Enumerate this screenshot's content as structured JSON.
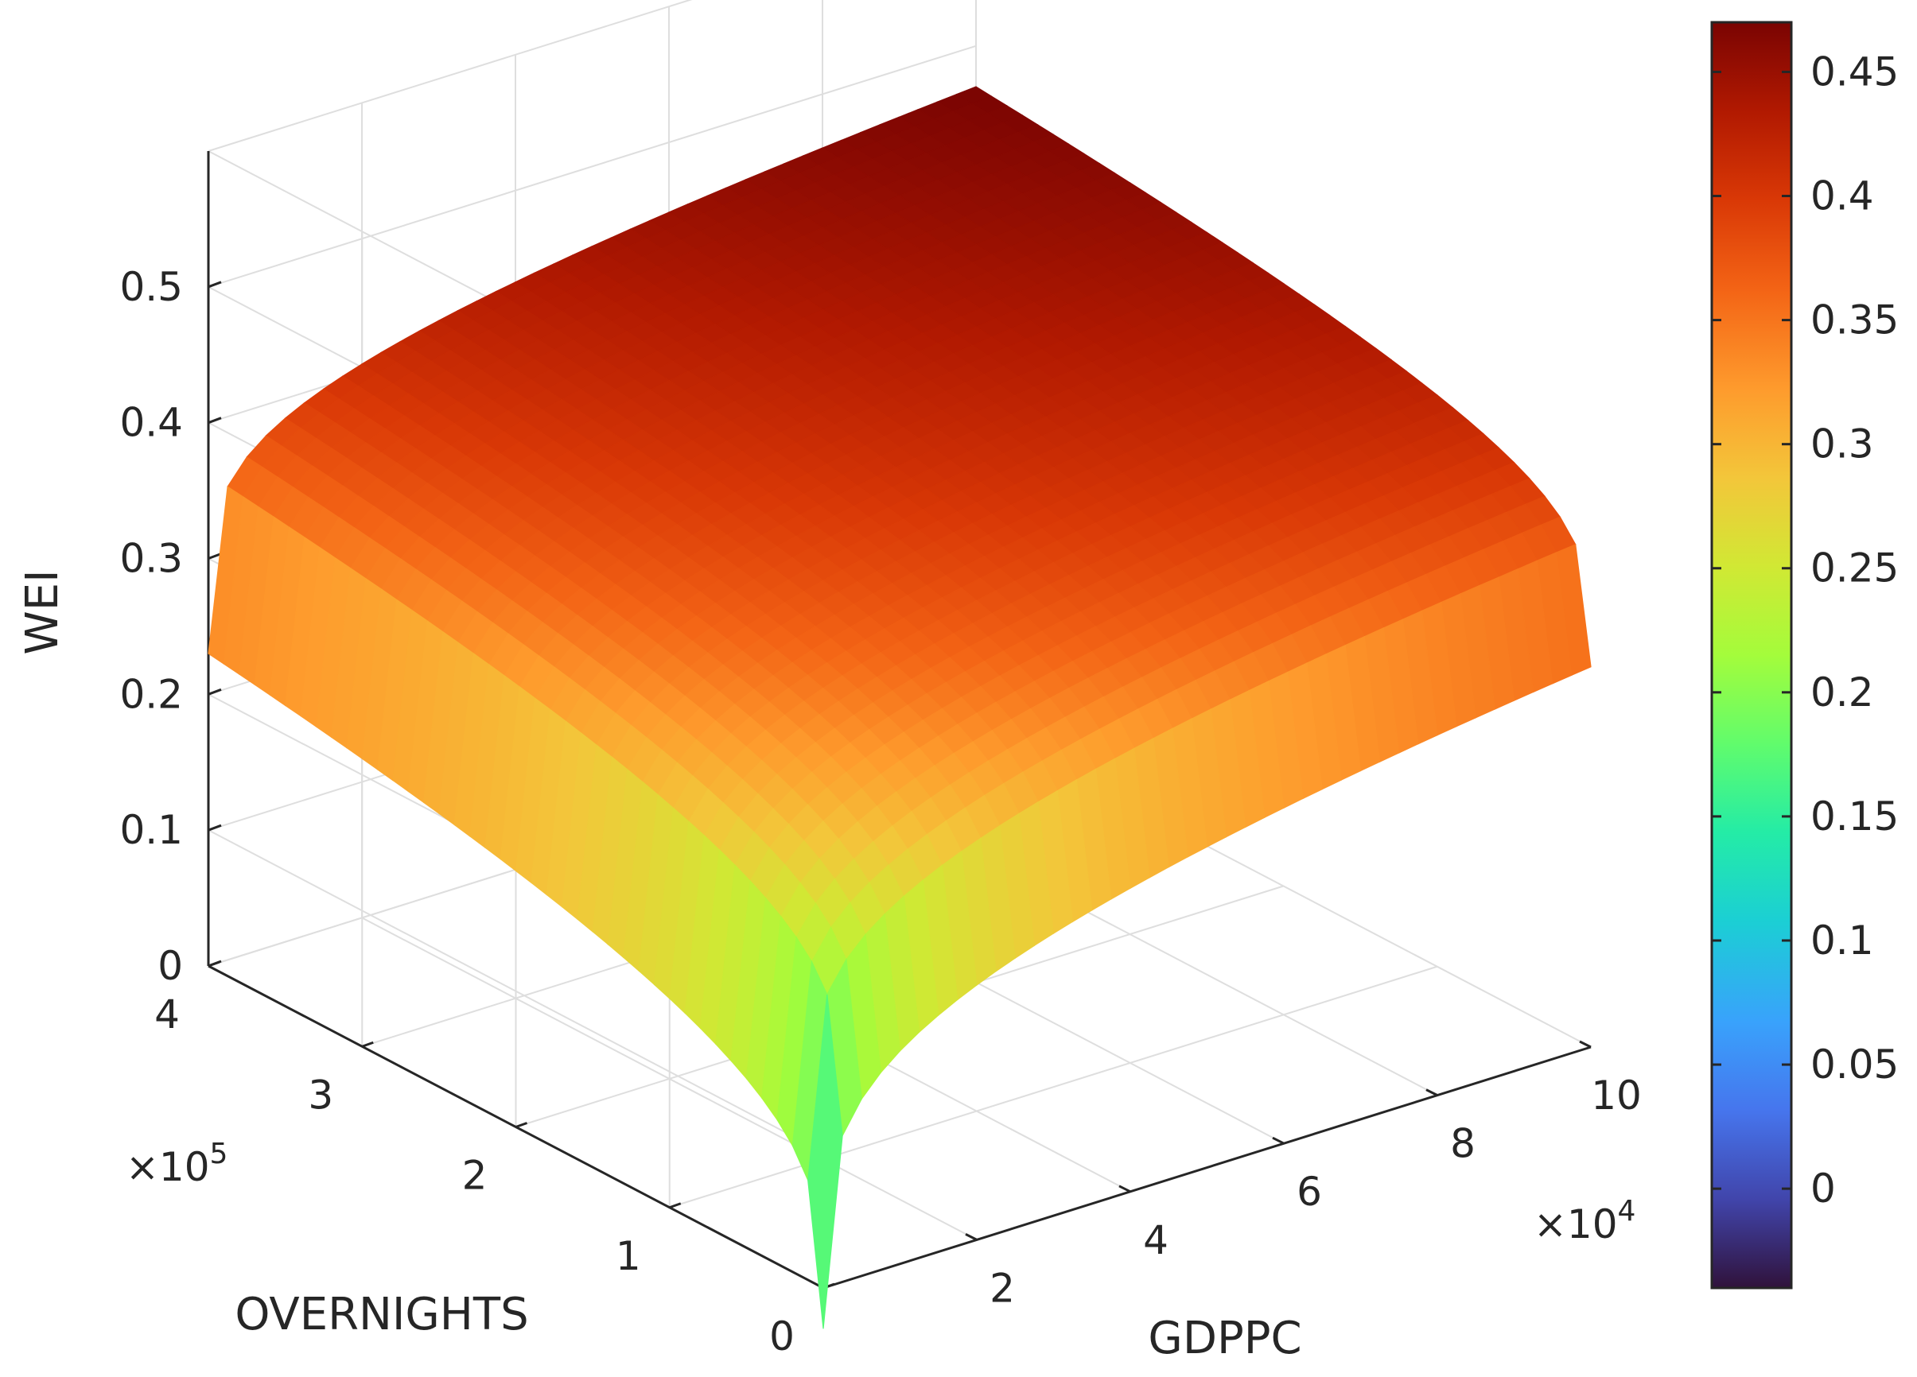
{
  "chart_data": {
    "type": "surface",
    "title": "",
    "x_axis": {
      "label": "GDPPC",
      "range": [
        0,
        100000
      ],
      "ticks": [
        20000,
        40000,
        60000,
        80000,
        100000
      ],
      "tick_labels": [
        "2",
        "4",
        "6",
        "8",
        "10"
      ],
      "exponent_label": "×10^4"
    },
    "y_axis": {
      "label": "OVERNIGHTS",
      "range": [
        0,
        400000
      ],
      "ticks": [
        0,
        100000,
        200000,
        300000,
        400000
      ],
      "tick_labels": [
        "0",
        "1",
        "2",
        "3",
        "4"
      ],
      "exponent_label": "×10^5"
    },
    "z_axis": {
      "label": "WEI",
      "range": [
        0,
        0.6
      ],
      "ticks": [
        0,
        0.1,
        0.2,
        0.3,
        0.4,
        0.5
      ],
      "tick_labels": [
        "0",
        "0.1",
        "0.2",
        "0.3",
        "0.4",
        "0.5"
      ]
    },
    "grid": true,
    "colorbar": {
      "colormap": "turbo",
      "range": [
        -0.04,
        0.47
      ],
      "ticks": [
        0,
        0.05,
        0.1,
        0.15,
        0.2,
        0.25,
        0.3,
        0.35,
        0.4,
        0.45
      ],
      "tick_labels": [
        "0",
        "0.05",
        "0.1",
        "0.15",
        "0.2",
        "0.25",
        "0.3",
        "0.35",
        "0.4",
        "0.45"
      ],
      "placement": "right"
    },
    "surface_samples": [
      {
        "gdppc": 0,
        "overnights": 0,
        "wei": -0.03
      },
      {
        "gdppc": 100000,
        "overnights": 0,
        "wei": 0.28
      },
      {
        "gdppc": 0,
        "overnights": 400000,
        "wei": 0.23
      },
      {
        "gdppc": 100000,
        "overnights": 400000,
        "wei": 0.47
      },
      {
        "gdppc": 50000,
        "overnights": 200000,
        "wei": 0.42
      }
    ]
  }
}
